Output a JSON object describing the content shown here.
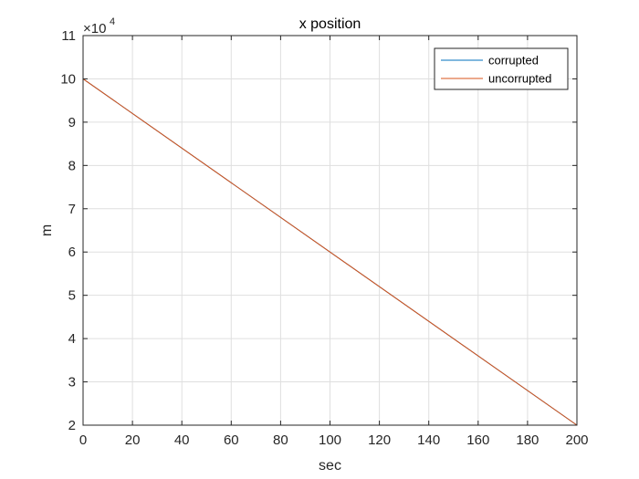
{
  "chart_data": {
    "type": "line",
    "title": "x position",
    "xlabel": "sec",
    "ylabel": "m",
    "xlim": [
      0,
      200
    ],
    "ylim": [
      2,
      11
    ],
    "y_exponent_label": "×10",
    "y_exponent_power": "4",
    "x_ticks": [
      0,
      20,
      40,
      60,
      80,
      100,
      120,
      140,
      160,
      180,
      200
    ],
    "y_ticks": [
      2,
      3,
      4,
      5,
      6,
      7,
      8,
      9,
      10,
      11
    ],
    "grid": true,
    "legend_position": "top-right",
    "series": [
      {
        "name": "corrupted",
        "color": "#0072BD",
        "x": [
          0,
          200
        ],
        "y": [
          10,
          2
        ]
      },
      {
        "name": "uncorrupted",
        "color": "#D95319",
        "x": [
          0,
          200
        ],
        "y": [
          10,
          2
        ]
      }
    ]
  }
}
